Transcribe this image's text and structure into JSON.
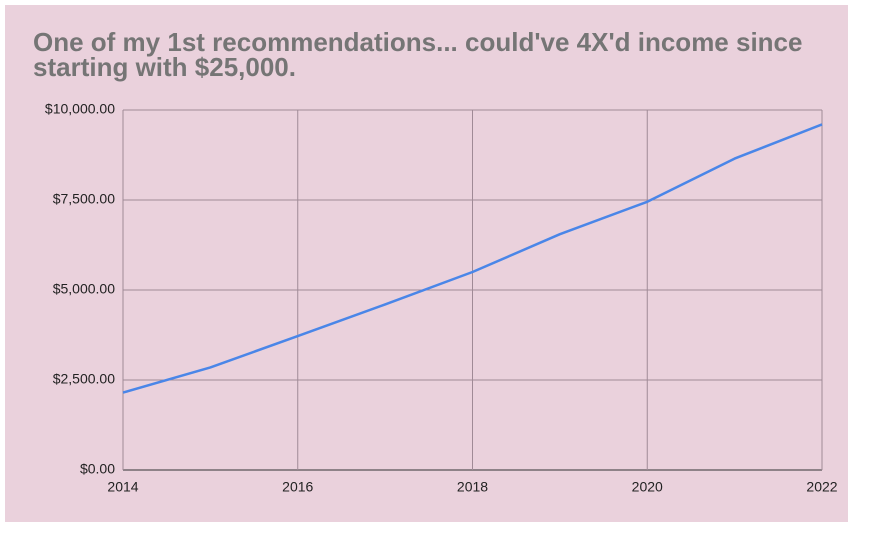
{
  "chart_data": {
    "type": "line",
    "title": "One of my 1st recommendations... could've 4X'd income since starting with $25,000.",
    "x": [
      2014,
      2015,
      2016,
      2017,
      2018,
      2019,
      2020,
      2021,
      2022
    ],
    "series": [
      {
        "color": "#4a86e8",
        "values": [
          2150,
          2850,
          3720,
          4600,
          5500,
          6550,
          7450,
          8650,
          9600
        ]
      }
    ],
    "xlim": [
      2014,
      2022
    ],
    "xticks": [
      2014,
      2016,
      2018,
      2020,
      2022
    ],
    "ylim": [
      0,
      10000
    ],
    "yticks": [
      {
        "value": 0,
        "label": "$0.00"
      },
      {
        "value": 2500,
        "label": "$2,500.00"
      },
      {
        "value": 5000,
        "label": "$5,000.00"
      },
      {
        "value": 7500,
        "label": "$7,500.00"
      },
      {
        "value": 10000,
        "label": "$10,000.00"
      }
    ],
    "grid": true
  }
}
